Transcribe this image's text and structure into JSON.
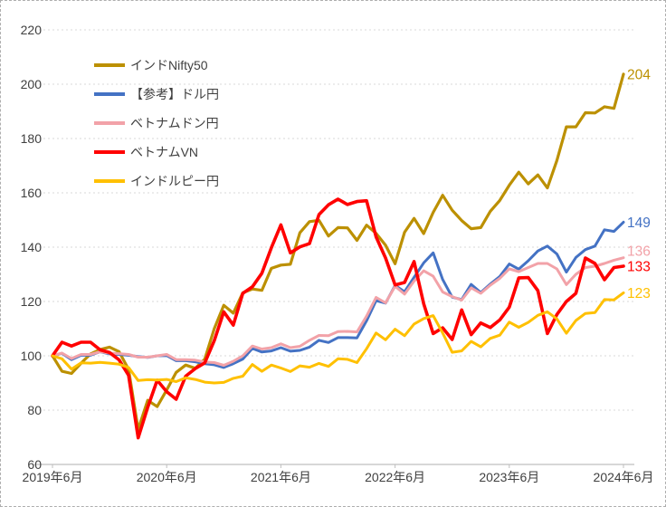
{
  "chart_data": {
    "type": "line",
    "title": "",
    "x_interval": "monthly",
    "x_range": [
      "2019年6月",
      "2024年6月"
    ],
    "x_tick_labels": [
      "2019年6月",
      "2020年6月",
      "2021年6月",
      "2022年6月",
      "2023年6月",
      "2024年6月"
    ],
    "y_ticks": [
      60,
      80,
      100,
      120,
      140,
      160,
      180,
      200,
      220
    ],
    "ylim": [
      60,
      220
    ],
    "grid": true,
    "legend_position": "top-left-overlay",
    "axis_text_color": "#404040",
    "grid_color": "#d9d9d9",
    "axis_line_color": "#bfbfbf",
    "series": [
      {
        "id": "nifty50",
        "name": "インドNifty50",
        "color": "#BC9000",
        "end_label": "204",
        "values": [
          100,
          94.3,
          93.5,
          97.3,
          100.7,
          102.3,
          103.2,
          101.5,
          95,
          72.9,
          83.6,
          81.3,
          87.4,
          93.9,
          96.6,
          95.4,
          98.8,
          110,
          118.6,
          115.7,
          123.2,
          124.6,
          124.1,
          132.2,
          133.4,
          133.7,
          145.3,
          149.4,
          149.9,
          144.1,
          147.2,
          147.1,
          142.5,
          148.1,
          145.1,
          140.7,
          133.9,
          145.5,
          150.6,
          145,
          152.8,
          159.1,
          153.6,
          149.8,
          146.8,
          147.2,
          153.2,
          157.2,
          162.8,
          167.6,
          163.3,
          166.6,
          161.8,
          171.9,
          184.3,
          184.3,
          189.5,
          189.4,
          191.7,
          191.1,
          203.7
        ]
      },
      {
        "id": "usdjpy",
        "name": "【参考】ドル円",
        "color": "#4472C4",
        "end_label": "149",
        "values": [
          100,
          100.9,
          98.6,
          100.2,
          100.2,
          101.5,
          100.7,
          100.5,
          100.2,
          99.7,
          99.4,
          100,
          100.1,
          98.2,
          98.2,
          97.8,
          97.1,
          96.7,
          95.7,
          97.1,
          98.8,
          102.7,
          101.4,
          101.8,
          103,
          101.7,
          102,
          103.2,
          105.7,
          104.9,
          106.7,
          106.7,
          106.6,
          112.9,
          120.3,
          119.4,
          125.9,
          123.6,
          128.9,
          134.2,
          137.9,
          128.1,
          121.6,
          120.7,
          126.3,
          123.3,
          126.4,
          129.2,
          133.8,
          131.9,
          135,
          138.6,
          140.4,
          137.5,
          130.8,
          136.2,
          139.1,
          140.4,
          146.4,
          145.8,
          149.2
        ]
      },
      {
        "id": "vnd-jpy",
        "name": "ベトナムドン円",
        "color": "#F2A2A8",
        "end_label": "136",
        "values": [
          100,
          101,
          99,
          100.5,
          100.5,
          101.5,
          101,
          100.8,
          100.5,
          99.5,
          99.5,
          100,
          100.5,
          98.6,
          98.6,
          98.4,
          97.7,
          97.5,
          96.5,
          98,
          100,
          103.6,
          102.5,
          103,
          104.4,
          103,
          103.5,
          105.7,
          107.5,
          107.4,
          108.9,
          109,
          108.8,
          114.6,
          121.5,
          119.5,
          125.6,
          122.7,
          127.5,
          131.3,
          129.3,
          123.5,
          121.8,
          120.5,
          125,
          123,
          126,
          128.5,
          132,
          131,
          132.5,
          134,
          134,
          132,
          126.2,
          130,
          132.5,
          133,
          134,
          135.2,
          136.1
        ]
      },
      {
        "id": "vn-index",
        "name": "ベトナムVN",
        "color": "#FF0000",
        "end_label": "133",
        "values": [
          100,
          105,
          103.6,
          105,
          105,
          102.2,
          101.2,
          98.5,
          92.8,
          69.8,
          81,
          91,
          86.8,
          84,
          92.5,
          95.3,
          97.4,
          105.6,
          116.2,
          111.3,
          123,
          125.4,
          130.4,
          139.8,
          148.2,
          137.9,
          140.1,
          141.3,
          152,
          155.6,
          157.7,
          155.7,
          156.8,
          157.1,
          143.8,
          136,
          126.1,
          127,
          134.7,
          119.2,
          108.2,
          110.3,
          106,
          116.9,
          107.8,
          112.1,
          110.4,
          113.2,
          117.9,
          128.7,
          128.8,
          124,
          108.2,
          115.2,
          120,
          123,
          136,
          134,
          128,
          132.5,
          133
        ]
      },
      {
        "id": "inr-jpy",
        "name": "インドルピー円",
        "color": "#FFC000",
        "end_label": "123",
        "values": [
          100,
          98.9,
          95.1,
          97.4,
          97.3,
          97.6,
          97.3,
          96.9,
          95.7,
          90.9,
          91.2,
          91.1,
          91.3,
          90.5,
          91.9,
          91.3,
          90.3,
          90,
          90.2,
          91.7,
          92.5,
          96.8,
          94.3,
          96.6,
          95.5,
          94.2,
          96.3,
          95.8,
          97.2,
          96.1,
          98.9,
          98.7,
          97.5,
          102.6,
          108.4,
          105.9,
          109.8,
          107.4,
          111.7,
          113.7,
          114.8,
          108.4,
          101.3,
          101.8,
          105.3,
          103.3,
          106.4,
          107.6,
          112.4,
          110.5,
          112.3,
          114.9,
          116.2,
          113.6,
          108.3,
          113,
          115.6,
          115.9,
          120.7,
          120.6,
          123.2
        ]
      }
    ]
  }
}
